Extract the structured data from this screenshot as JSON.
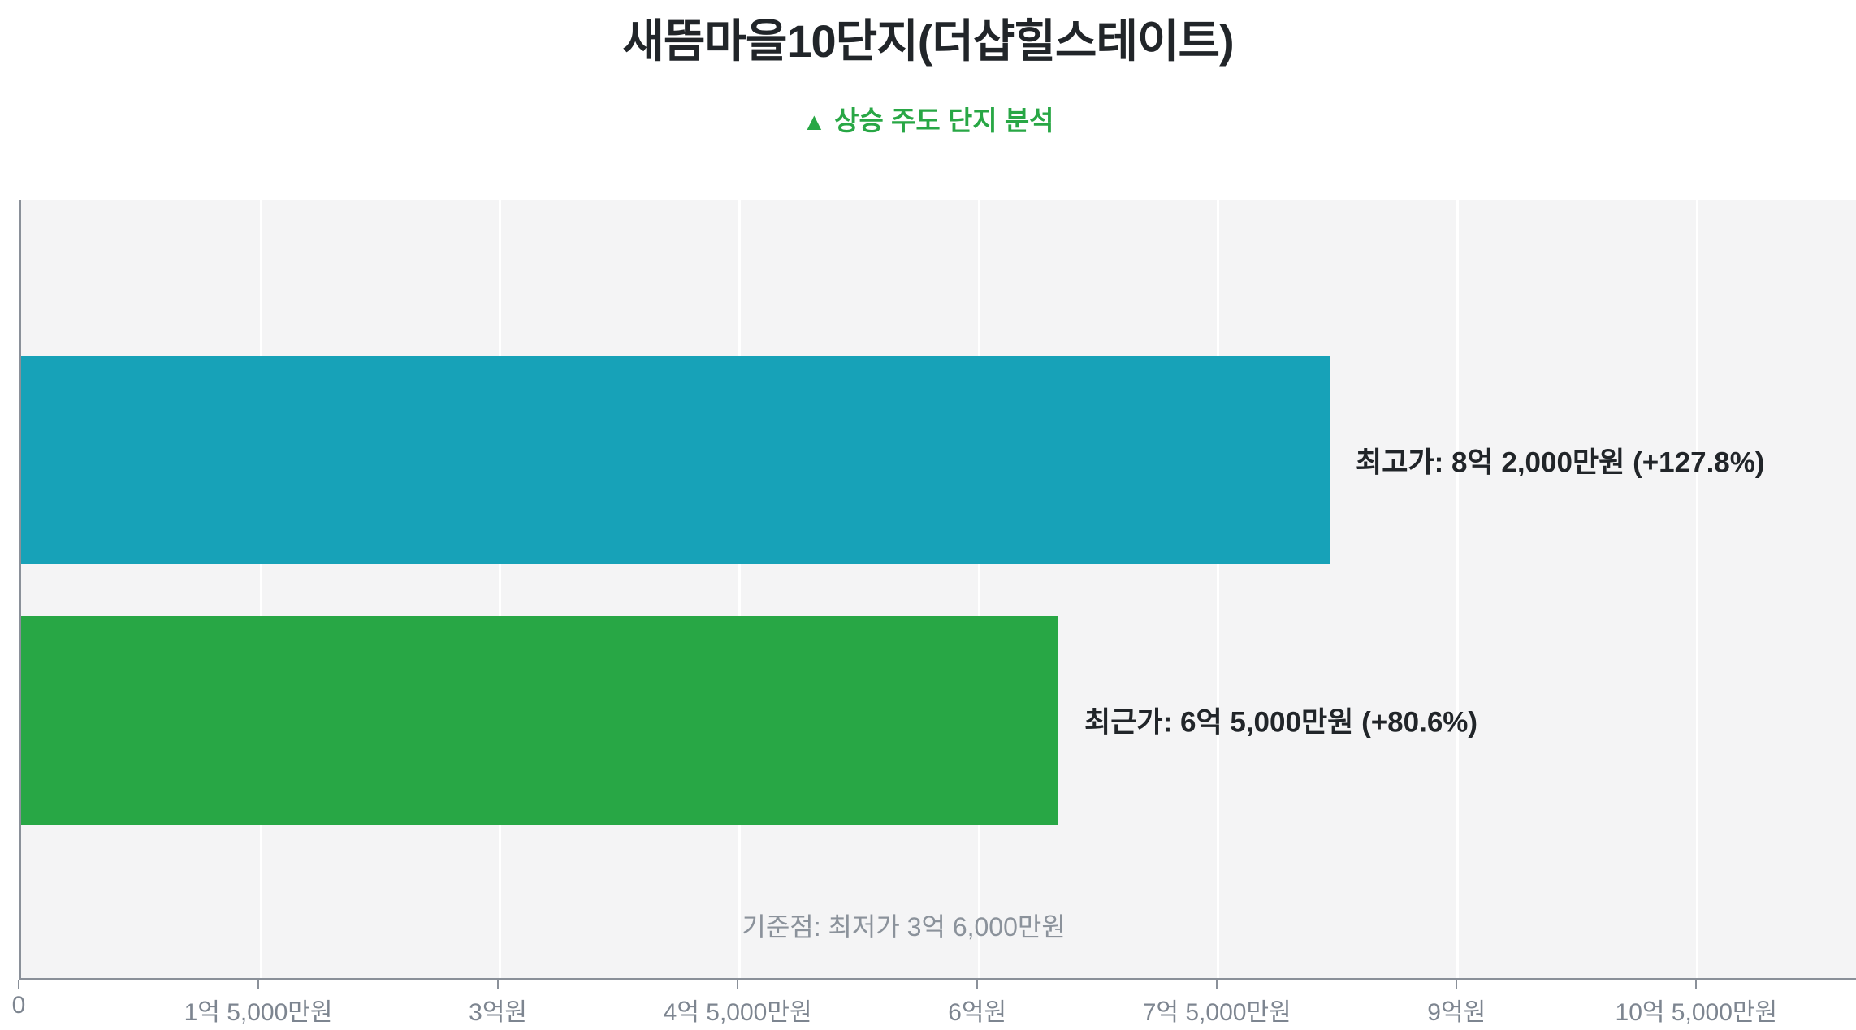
{
  "title": "새뜸마을10단지(더샵힐스테이트)",
  "subtitle": {
    "icon": "▲",
    "text": "상승 주도 단지 분석"
  },
  "colors": {
    "title_text": "#212529",
    "subtitle_green": "#28a745",
    "bar_teal": "#17a2b8",
    "bar_green": "#28a745",
    "plot_background": "#f4f4f5",
    "gridline": "#ffffff",
    "axis_spine": "#8a9099",
    "tick_label": "#7d8590",
    "annotation_gray": "#8b929b",
    "bar_label_text": "#212529"
  },
  "chart_data": {
    "type": "bar",
    "orientation": "horizontal",
    "title": "새뜸마을10단지(더샵힐스테이트)",
    "subtitle": "▲ 상승 주도 단지 분석",
    "xlim": [
      0,
      1150000000
    ],
    "grid": true,
    "x_ticks": [
      {
        "value": 0,
        "label": "0"
      },
      {
        "value": 150000000,
        "label": "1억 5,000만원"
      },
      {
        "value": 300000000,
        "label": "3억원"
      },
      {
        "value": 450000000,
        "label": "4억 5,000만원"
      },
      {
        "value": 600000000,
        "label": "6억원"
      },
      {
        "value": 750000000,
        "label": "7억 5,000만원"
      },
      {
        "value": 900000000,
        "label": "9억원"
      },
      {
        "value": 1050000000,
        "label": "10억 5,000만원"
      }
    ],
    "bars": [
      {
        "key": "highest-price",
        "name": "최고가",
        "value": 820000000,
        "change_pct": "+127.8%",
        "label": "최고가: 8억 2,000만원 (+127.8%)",
        "color": "#17a2b8"
      },
      {
        "key": "recent-price",
        "name": "최근가",
        "value": 650000000,
        "change_pct": "+80.6%",
        "label": "최근가: 6억 5,000만원 (+80.6%)",
        "color": "#28a745"
      }
    ],
    "baseline": {
      "label": "기준점: 최저가 3억 6,000만원",
      "name": "최저가",
      "value": 360000000
    }
  }
}
